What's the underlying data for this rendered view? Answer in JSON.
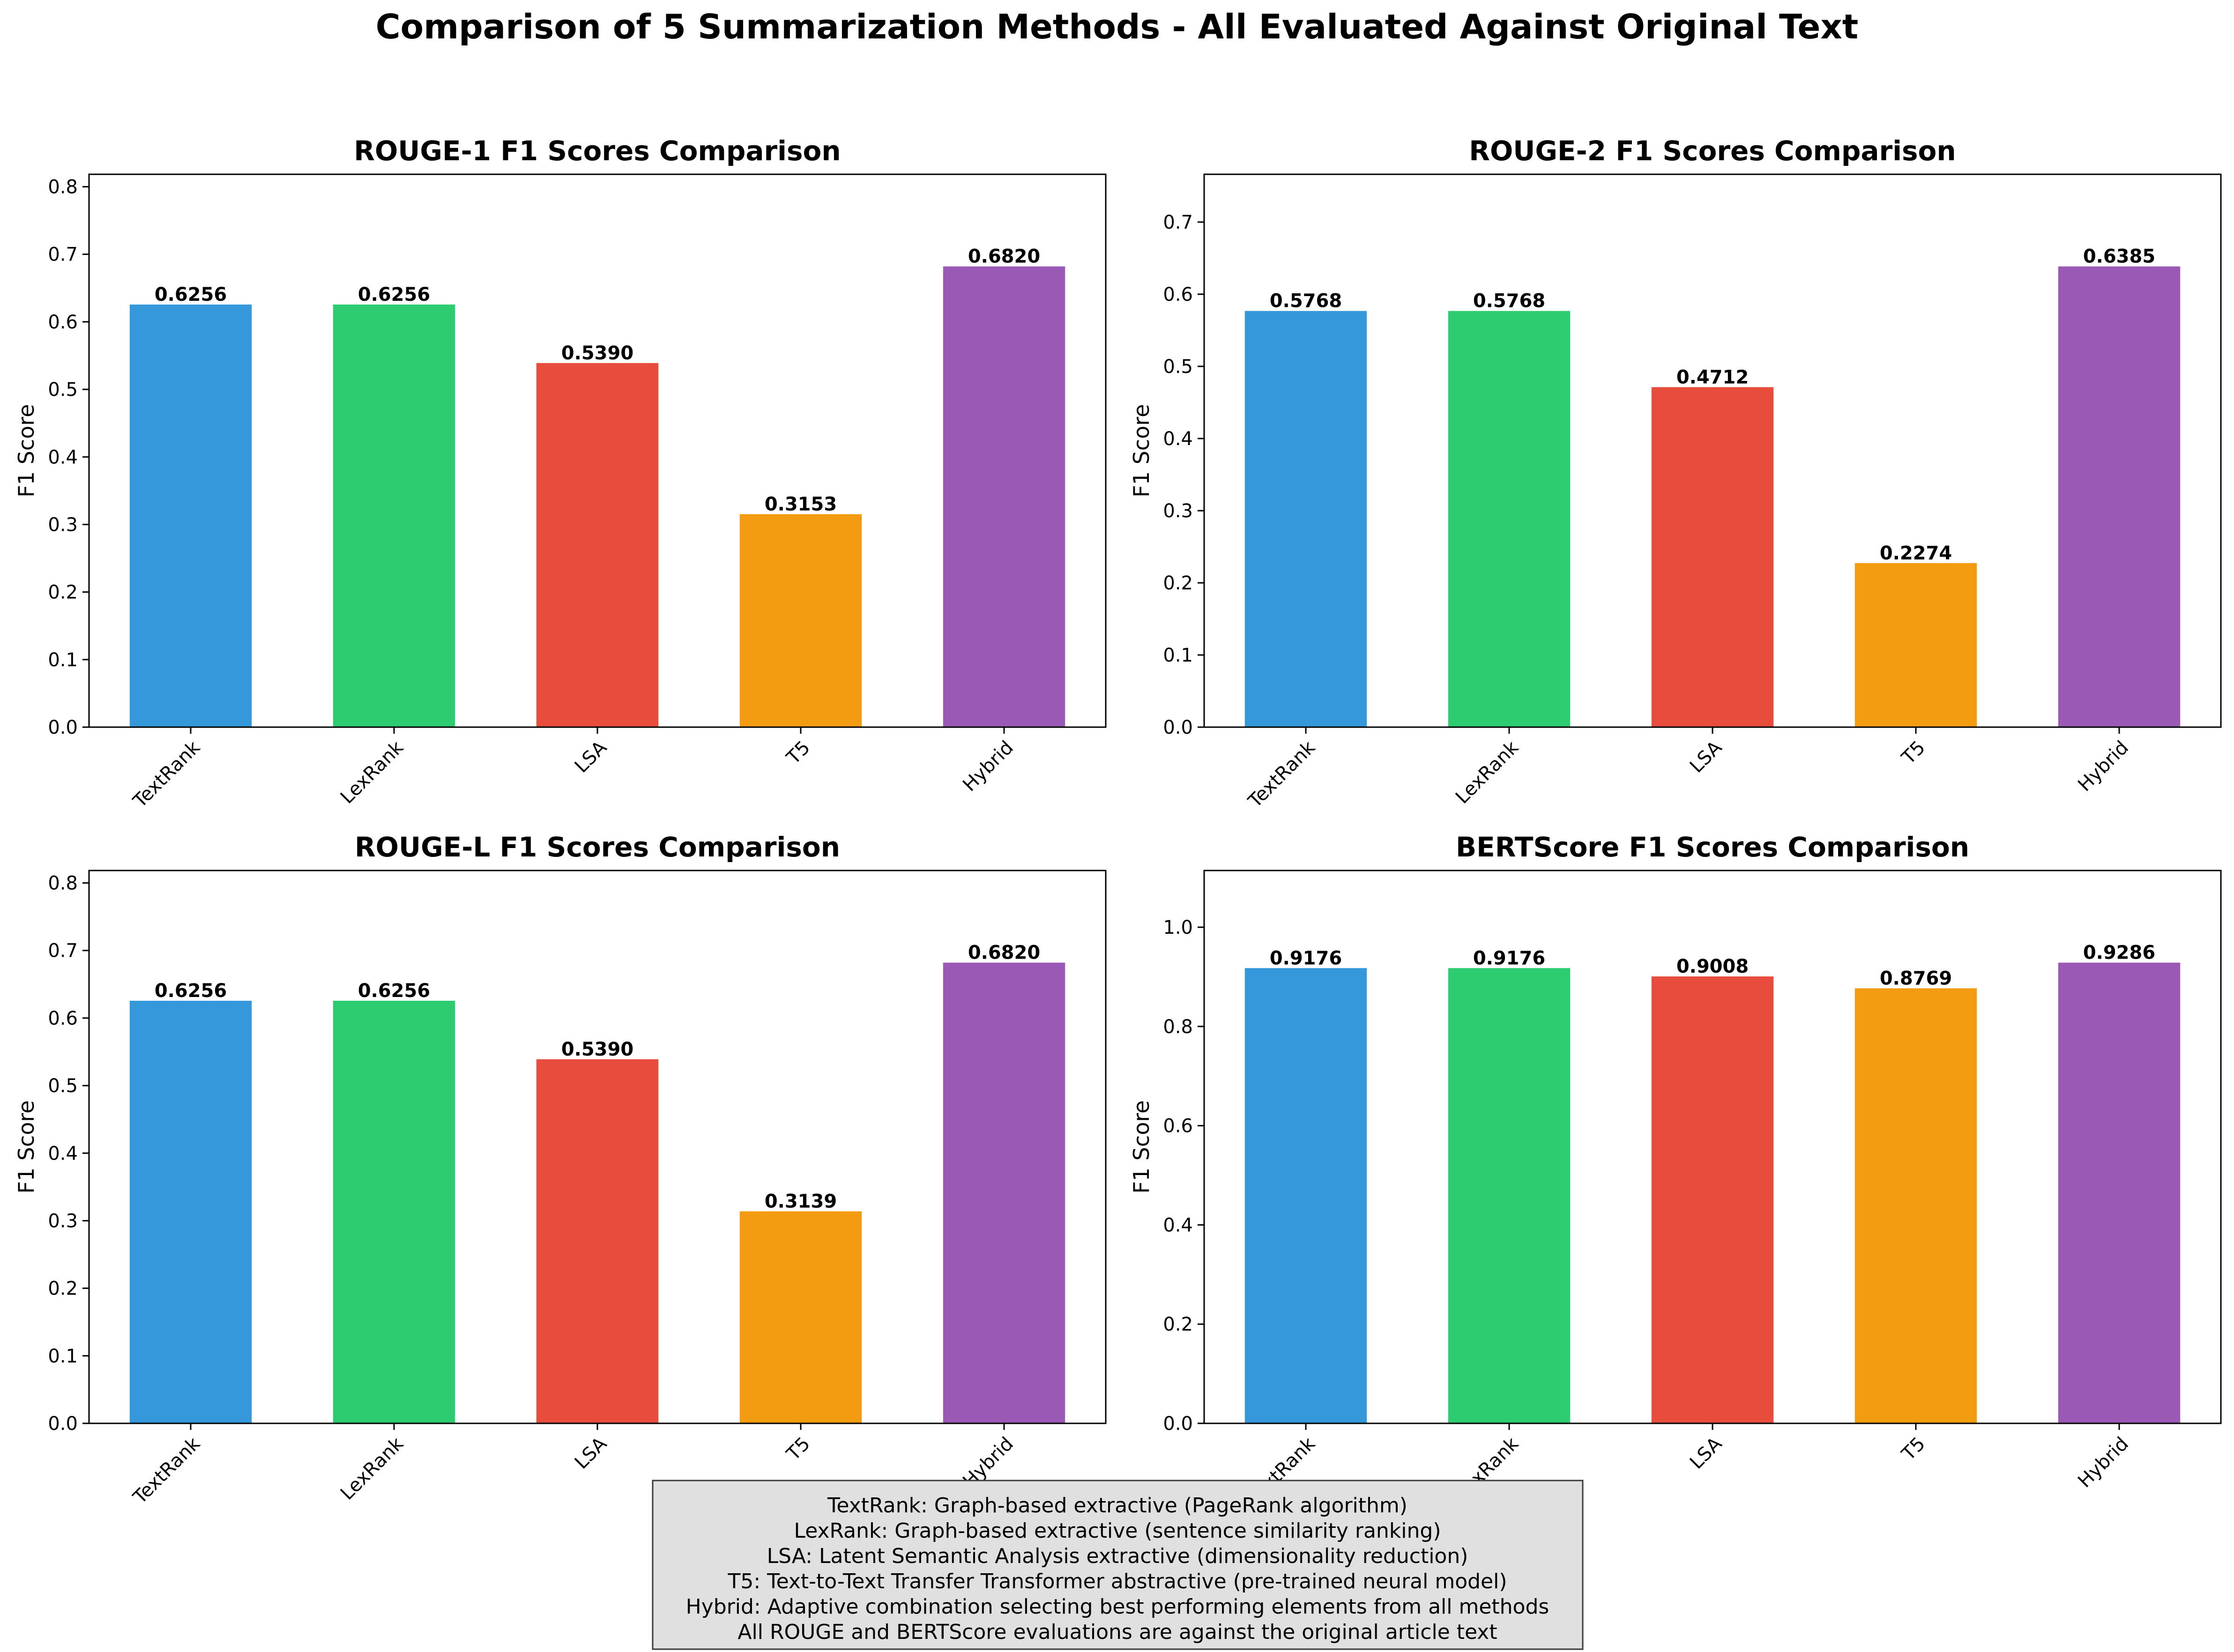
{
  "figure": {
    "suptitle": "Comparison of 5 Summarization Methods - All Evaluated Against Original Text"
  },
  "colors": {
    "TextRank": "#3498db",
    "LexRank": "#2ecc71",
    "LSA": "#e74c3c",
    "T5": "#f39c12",
    "Hybrid": "#9b59b6"
  },
  "chart_data": [
    {
      "type": "bar",
      "title": "ROUGE-1 F1 Scores Comparison",
      "xlabel": "",
      "ylabel": "F1 Score",
      "categories": [
        "TextRank",
        "LexRank",
        "LSA",
        "T5",
        "Hybrid"
      ],
      "values": [
        0.6256,
        0.6256,
        0.539,
        0.3153,
        0.682
      ],
      "value_labels": [
        "0.6256",
        "0.6256",
        "0.5390",
        "0.3153",
        "0.6820"
      ],
      "ylim": [
        0,
        0.8184
      ],
      "yticks": [
        0.0,
        0.1,
        0.2,
        0.3,
        0.4,
        0.5,
        0.6,
        0.7,
        0.8
      ],
      "ytick_labels": [
        "0.0",
        "0.1",
        "0.2",
        "0.3",
        "0.4",
        "0.5",
        "0.6",
        "0.7",
        "0.8"
      ],
      "grid": false
    },
    {
      "type": "bar",
      "title": "ROUGE-2 F1 Scores Comparison",
      "xlabel": "",
      "ylabel": "F1 Score",
      "categories": [
        "TextRank",
        "LexRank",
        "LSA",
        "T5",
        "Hybrid"
      ],
      "values": [
        0.5768,
        0.5768,
        0.4712,
        0.2274,
        0.6385
      ],
      "value_labels": [
        "0.5768",
        "0.5768",
        "0.4712",
        "0.2274",
        "0.6385"
      ],
      "ylim": [
        0,
        0.7662
      ],
      "yticks": [
        0.0,
        0.1,
        0.2,
        0.3,
        0.4,
        0.5,
        0.6,
        0.7
      ],
      "ytick_labels": [
        "0.0",
        "0.1",
        "0.2",
        "0.3",
        "0.4",
        "0.5",
        "0.6",
        "0.7"
      ],
      "grid": false
    },
    {
      "type": "bar",
      "title": "ROUGE-L F1 Scores Comparison",
      "xlabel": "",
      "ylabel": "F1 Score",
      "categories": [
        "TextRank",
        "LexRank",
        "LSA",
        "T5",
        "Hybrid"
      ],
      "values": [
        0.6256,
        0.6256,
        0.539,
        0.3139,
        0.682
      ],
      "value_labels": [
        "0.6256",
        "0.6256",
        "0.5390",
        "0.3139",
        "0.6820"
      ],
      "ylim": [
        0,
        0.8184
      ],
      "yticks": [
        0.0,
        0.1,
        0.2,
        0.3,
        0.4,
        0.5,
        0.6,
        0.7,
        0.8
      ],
      "ytick_labels": [
        "0.0",
        "0.1",
        "0.2",
        "0.3",
        "0.4",
        "0.5",
        "0.6",
        "0.7",
        "0.8"
      ],
      "grid": false
    },
    {
      "type": "bar",
      "title": "BERTScore F1 Scores Comparison",
      "xlabel": "",
      "ylabel": "F1 Score",
      "categories": [
        "TextRank",
        "LexRank",
        "LSA",
        "T5",
        "Hybrid"
      ],
      "values": [
        0.9176,
        0.9176,
        0.9008,
        0.8769,
        0.9286
      ],
      "value_labels": [
        "0.9176",
        "0.9176",
        "0.9008",
        "0.8769",
        "0.9286"
      ],
      "ylim": [
        0,
        1.1143
      ],
      "yticks": [
        0.0,
        0.2,
        0.4,
        0.6,
        0.8,
        1.0
      ],
      "ytick_labels": [
        "0.0",
        "0.2",
        "0.4",
        "0.6",
        "0.8",
        "1.0"
      ],
      "grid": false
    }
  ],
  "notes": {
    "lines": [
      "TextRank: Graph-based extractive (PageRank algorithm)",
      "LexRank: Graph-based extractive (sentence similarity ranking)",
      "LSA: Latent Semantic Analysis extractive (dimensionality reduction)",
      "T5: Text-to-Text Transfer Transformer abstractive (pre-trained neural model)",
      "Hybrid: Adaptive combination selecting best performing elements from all methods",
      "All ROUGE and BERTScore evaluations are against the original article text"
    ]
  }
}
